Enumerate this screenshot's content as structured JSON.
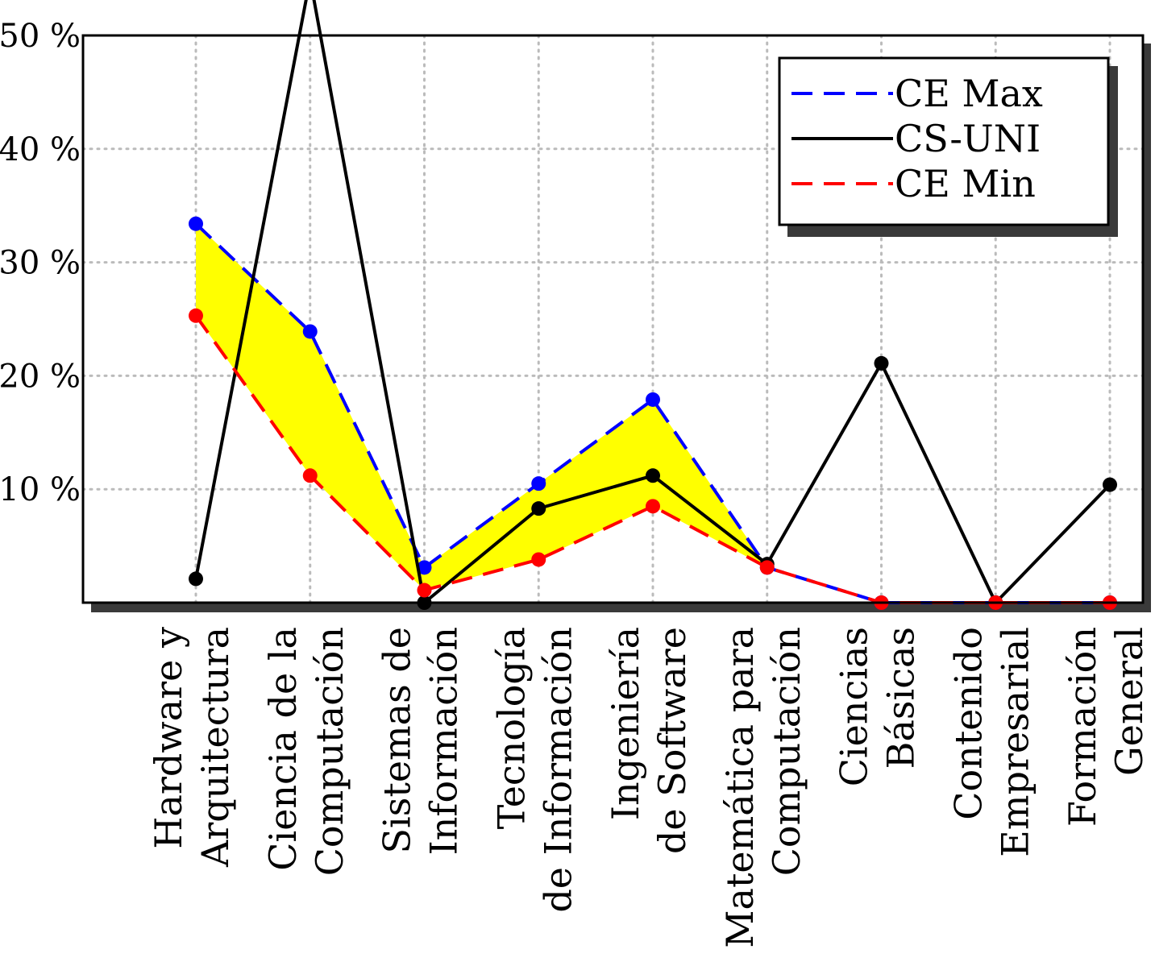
{
  "chart_data": {
    "type": "line",
    "categories": [
      [
        "Hardware y",
        "Arquitectura"
      ],
      [
        "Ciencia de la",
        "Computación"
      ],
      [
        "Sistemas de",
        "Información"
      ],
      [
        "Tecnología",
        "de Información"
      ],
      [
        "Ingeniería",
        "de Software"
      ],
      [
        "Matemática para",
        "Computación"
      ],
      [
        "Ciencias",
        "Básicas"
      ],
      [
        "Contenido",
        "Empresarial"
      ],
      [
        "Formación",
        "General"
      ]
    ],
    "series": [
      {
        "name": "CE Max",
        "color": "#0000ff",
        "dash": "dashed",
        "values": [
          33.4,
          23.9,
          3.1,
          10.5,
          17.9,
          3.1,
          0,
          0,
          0
        ]
      },
      {
        "name": "CS-UNI",
        "color": "#000000",
        "dash": "solid",
        "values": [
          2.1,
          55.0,
          0,
          8.3,
          11.2,
          3.4,
          21.1,
          0,
          10.4
        ]
      },
      {
        "name": "CE Min",
        "color": "#ff0000",
        "dash": "dashed",
        "values": [
          25.3,
          11.2,
          1.1,
          3.8,
          8.5,
          3.1,
          0,
          0,
          0
        ]
      }
    ],
    "fill_between": {
      "upper": "CE Max",
      "lower": "CE Min",
      "color": "#ffff00"
    },
    "yticks": [
      "10 %",
      "20 %",
      "30 %",
      "40 %",
      "50 %"
    ],
    "ytick_values": [
      10,
      20,
      30,
      40,
      50
    ],
    "ylim": [
      0,
      50
    ],
    "grid": true,
    "legend": "top-right"
  }
}
